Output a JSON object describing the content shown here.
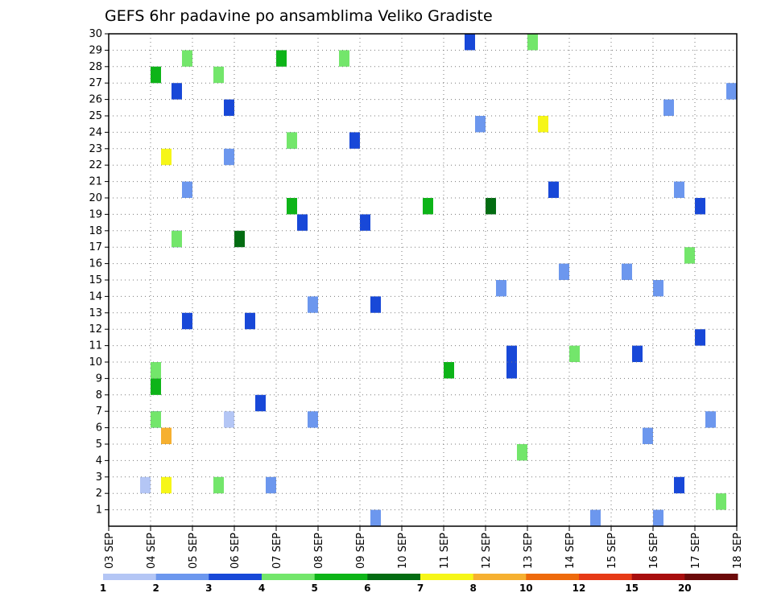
{
  "chart_data": {
    "type": "heatmap",
    "title": "GEFS 6hr padavine po ansamblima Veliko Gradiste",
    "x_tick_labels": [
      "03 SEP",
      "04 SEP",
      "05 SEP",
      "06 SEP",
      "07 SEP",
      "08 SEP",
      "09 SEP",
      "10 SEP",
      "11 SEP",
      "12 SEP",
      "13 SEP",
      "14 SEP",
      "15 SEP",
      "16 SEP",
      "17 SEP",
      "18 SEP"
    ],
    "y_tick_labels": [
      "1",
      "2",
      "3",
      "4",
      "5",
      "6",
      "7",
      "8",
      "9",
      "10",
      "11",
      "12",
      "13",
      "14",
      "15",
      "16",
      "17",
      "18",
      "19",
      "20",
      "21",
      "22",
      "23",
      "24",
      "25",
      "26",
      "27",
      "28",
      "29",
      "30"
    ],
    "x_range": [
      0,
      60
    ],
    "y_range": [
      0,
      30
    ],
    "grid": true,
    "colorbar": {
      "labels": [
        "1",
        "2",
        "3",
        "4",
        "5",
        "6",
        "7",
        "8",
        "10",
        "12",
        "15",
        "20"
      ],
      "colors": [
        "#b4c6f5",
        "#6c97ee",
        "#1848d8",
        "#73e66b",
        "#0db418",
        "#036c12",
        "#f6f618",
        "#f6b030",
        "#ee6a0c",
        "#e63a16",
        "#a80e0e",
        "#6c0a0a"
      ]
    },
    "cells": [
      [
        1,
        0,
        1
      ],
      [
        2,
        0,
        9
      ],
      [
        3,
        1,
        -1
      ],
      [
        4,
        1,
        -1
      ],
      [
        4,
        0,
        1
      ],
      [
        4,
        0,
        9
      ],
      [
        4,
        3,
        3
      ],
      [
        4,
        4,
        4
      ],
      [
        5,
        3,
        6
      ],
      [
        6,
        2,
        2
      ],
      [
        6,
        1,
        3
      ],
      [
        6,
        0,
        2
      ],
      [
        7,
        3,
        2
      ],
      [
        8,
        0,
        1
      ],
      [
        9,
        0,
        1
      ],
      [
        10,
        2,
        3
      ],
      [
        11,
        3,
        1
      ],
      [
        12,
        1,
        5
      ],
      [
        13,
        1,
        2
      ],
      [
        13,
        0,
        3
      ],
      [
        14,
        1,
        2
      ],
      [
        14,
        0,
        1
      ],
      [
        15,
        1,
        1
      ],
      [
        16,
        1,
        4
      ],
      [
        17,
        1,
        1
      ],
      [
        17,
        2,
        3
      ],
      [
        18,
        1,
        2
      ],
      [
        19,
        2,
        1
      ],
      [
        20,
        0,
        1
      ],
      [
        21,
        0,
        1
      ],
      [
        22,
        1,
        3
      ],
      [
        23,
        1,
        2
      ],
      [
        24,
        1,
        2
      ],
      [
        25,
        2,
        2
      ],
      [
        26,
        0,
        3
      ],
      [
        27,
        0,
        2
      ],
      [
        28,
        0,
        1
      ],
      [
        29,
        0,
        2
      ],
      [
        30,
        1,
        4
      ],
      [
        31,
        0,
        5
      ],
      [
        32,
        1,
        4
      ],
      [
        33,
        0,
        2
      ],
      [
        34,
        1,
        2
      ],
      [
        35,
        1,
        1
      ],
      [
        36,
        1,
        5
      ],
      [
        37,
        1,
        1
      ],
      [
        38,
        2,
        2
      ],
      [
        39,
        1,
        3
      ],
      [
        40,
        1,
        3
      ],
      [
        41,
        1,
        6
      ],
      [
        42,
        1,
        2
      ],
      [
        43,
        1,
        1
      ],
      [
        44,
        1,
        3
      ],
      [
        45,
        0,
        1
      ],
      [
        46,
        1,
        1
      ],
      [
        47,
        0,
        4
      ],
      [
        48,
        0,
        1
      ],
      [
        49,
        1,
        1
      ],
      [
        50,
        1,
        2
      ],
      [
        51,
        1,
        1
      ],
      [
        52,
        2,
        1
      ],
      [
        53,
        1,
        1
      ],
      [
        54,
        2,
        1
      ],
      [
        55,
        1,
        3
      ],
      [
        56,
        2,
        2
      ],
      [
        57,
        1,
        1
      ],
      [
        58,
        1,
        3
      ],
      [
        59,
        1,
        1
      ]
    ],
    "legend_position": "bottom",
    "xlabel": "",
    "ylabel": ""
  }
}
